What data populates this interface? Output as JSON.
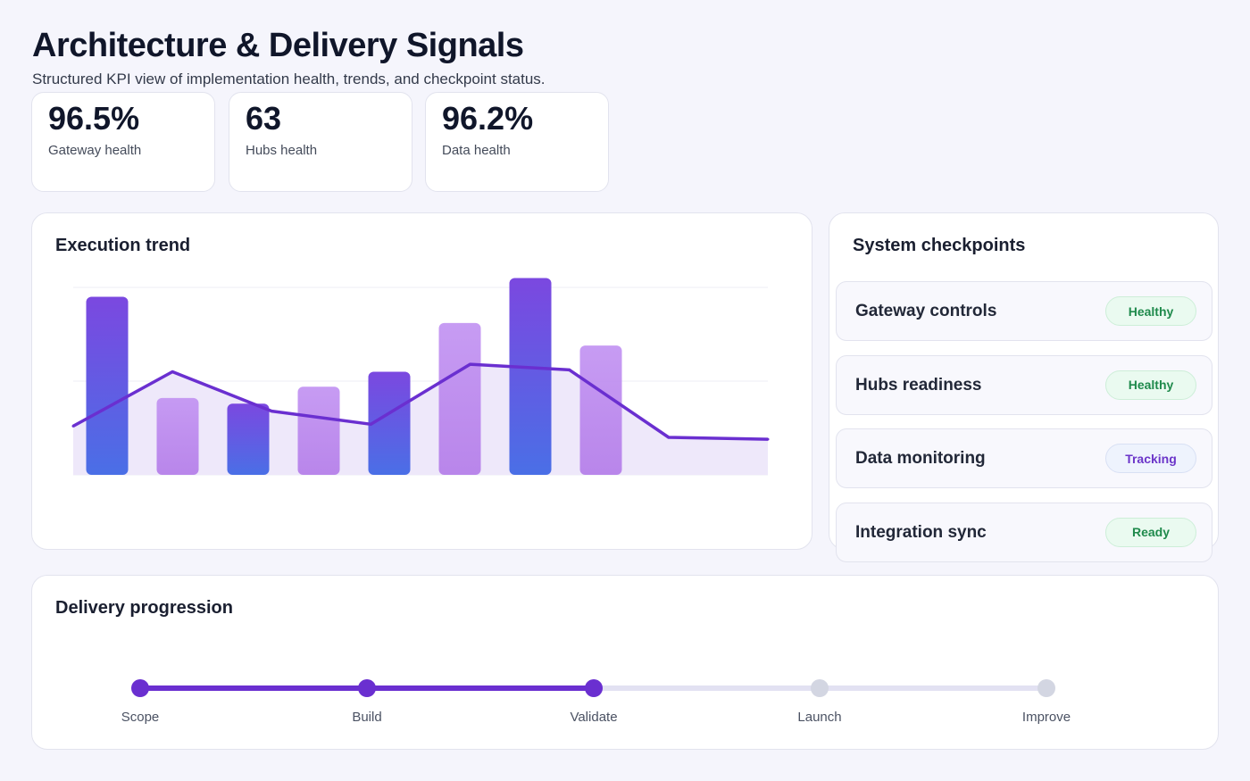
{
  "header": {
    "title": "Architecture & Delivery Signals",
    "subtitle": "Structured KPI view of implementation health, trends, and checkpoint status."
  },
  "kpis": [
    {
      "value": "96.5%",
      "label": "Gateway health"
    },
    {
      "value": "63",
      "label": "Hubs health"
    },
    {
      "value": "96.2%",
      "label": "Data health"
    }
  ],
  "trend": {
    "title": "Execution trend"
  },
  "chart_data": {
    "type": "bar",
    "title": "Execution trend",
    "ylim": [
      0,
      100
    ],
    "grid": true,
    "bars": [
      95,
      41,
      38,
      47,
      55,
      81,
      105,
      69
    ],
    "line": [
      26,
      55,
      34,
      27,
      59,
      56,
      20,
      19
    ],
    "colors": {
      "bar_dark_top": "#7b48e0",
      "bar_dark_bottom": "#4a6fe6",
      "bar_light_top": "#c293f2",
      "bar_light_bottom": "#b47de9",
      "line": "#6a2fd0",
      "area": "#ece6fa"
    }
  },
  "checkpoints": {
    "title": "System checkpoints",
    "items": [
      {
        "name": "Gateway controls",
        "status": "Healthy",
        "kind": "ok"
      },
      {
        "name": "Hubs readiness",
        "status": "Healthy",
        "kind": "ok"
      },
      {
        "name": "Data monitoring",
        "status": "Tracking",
        "kind": "track"
      },
      {
        "name": "Integration sync",
        "status": "Ready",
        "kind": "ok"
      }
    ]
  },
  "progression": {
    "title": "Delivery progression",
    "completed": 3,
    "steps": [
      "Scope",
      "Build",
      "Validate",
      "Launch",
      "Improve"
    ],
    "colors": {
      "done": "#6a2fd0",
      "todo": "#d3d6e2"
    }
  }
}
